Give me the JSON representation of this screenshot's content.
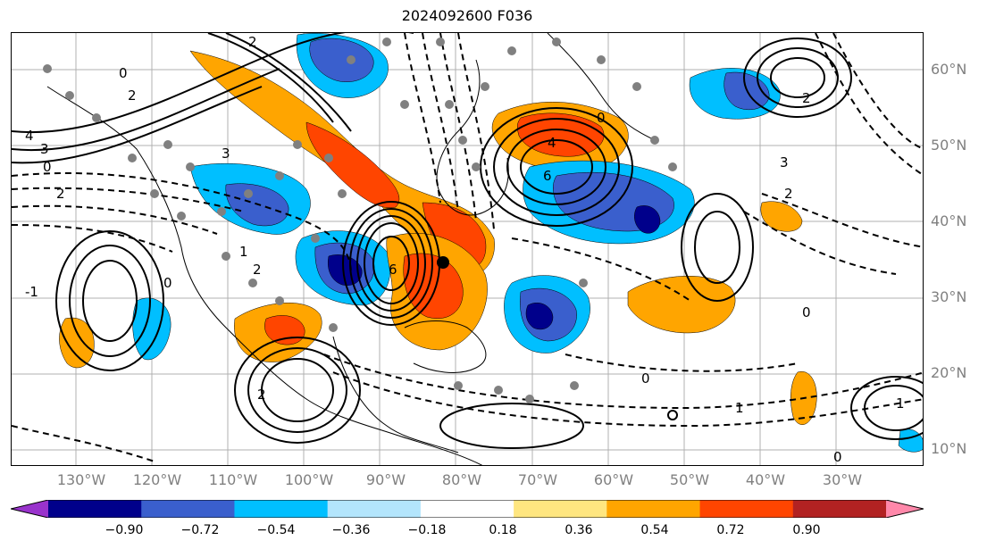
{
  "title": "2024092600 F036",
  "lat_labels": [
    "60°N",
    "50°N",
    "40°N",
    "30°N",
    "20°N",
    "10°N"
  ],
  "lon_labels": [
    "130°W",
    "120°W",
    "110°W",
    "100°W",
    "90°W",
    "80°W",
    "70°W",
    "60°W",
    "50°W",
    "40°W",
    "30°W"
  ],
  "colorbar": {
    "ticks": [
      "−0.90",
      "−0.72",
      "−0.54",
      "−0.36",
      "−0.18",
      "0.18",
      "0.36",
      "0.54",
      "0.72",
      "0.90"
    ],
    "colors": [
      "#9933cc",
      "#00008b",
      "#3a5fcd",
      "#00bfff",
      "#b3e5fc",
      "#ffffff",
      "#ffe680",
      "#ffa500",
      "#ff4500",
      "#b22222",
      "#ff88aa"
    ]
  },
  "fill_colors": {
    "dark_blue": "#00008b",
    "blue": "#3a5fcd",
    "cyan": "#00bfff",
    "light_cyan": "#b3e5fc",
    "yellow": "#ffe680",
    "orange": "#ffa500",
    "red": "#ff4500"
  },
  "contour_labels": [
    "0",
    "2",
    "3",
    "4",
    "6",
    "1",
    "-1",
    "0",
    "2",
    "3",
    "2",
    "6",
    "4",
    "2",
    "3",
    "0",
    "1",
    "2",
    "2",
    "0",
    "0",
    "1",
    "0",
    "2",
    "0"
  ]
}
